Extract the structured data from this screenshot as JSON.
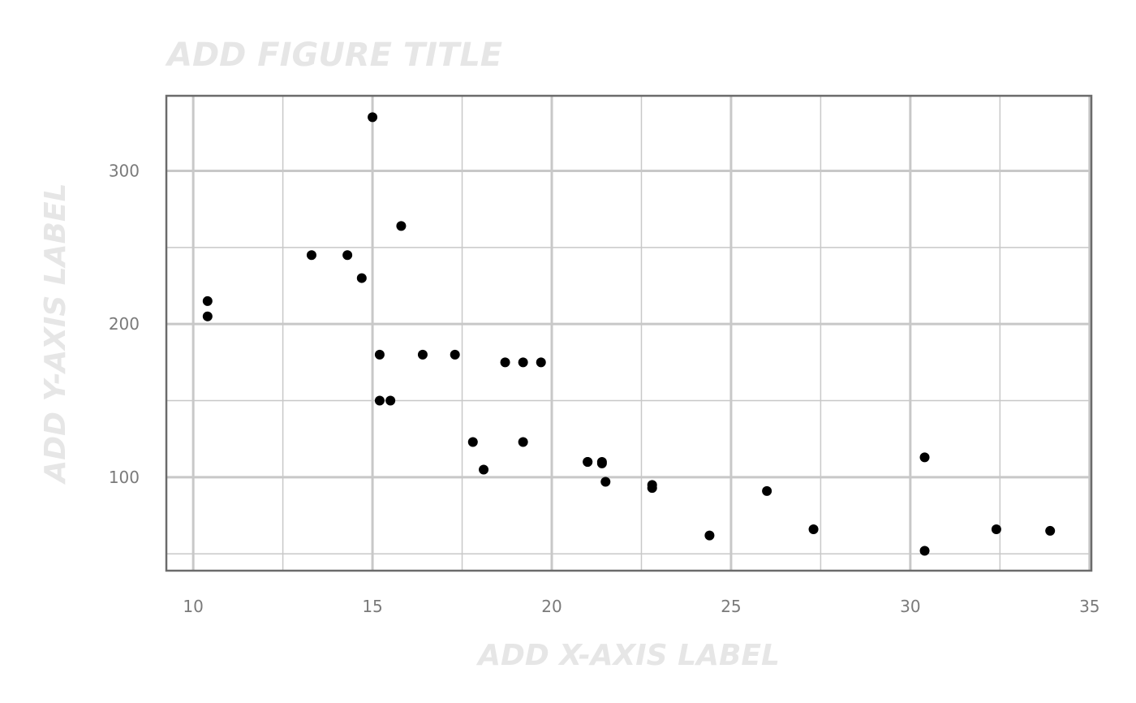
{
  "chart_data": {
    "type": "scatter",
    "title": "ADD FIGURE TITLE",
    "xlabel": "ADD X-AXIS LABEL",
    "ylabel": "ADD Y-AXIS LABEL",
    "xlim": [
      9.25,
      35.05
    ],
    "ylim": [
      39,
      349
    ],
    "x_ticks": [
      10,
      15,
      20,
      25,
      30,
      35
    ],
    "y_ticks": [
      100,
      200,
      300
    ],
    "x_tick_labels": [
      "10",
      "15",
      "20",
      "25",
      "30",
      "35"
    ],
    "y_tick_labels": [
      "100",
      "200",
      "300"
    ],
    "grid": true,
    "legend": "none",
    "point_color": "#000000",
    "points": [
      {
        "x": 21.0,
        "y": 110
      },
      {
        "x": 21.0,
        "y": 110
      },
      {
        "x": 22.8,
        "y": 93
      },
      {
        "x": 21.4,
        "y": 110
      },
      {
        "x": 18.7,
        "y": 175
      },
      {
        "x": 18.1,
        "y": 105
      },
      {
        "x": 14.3,
        "y": 245
      },
      {
        "x": 24.4,
        "y": 62
      },
      {
        "x": 22.8,
        "y": 95
      },
      {
        "x": 19.2,
        "y": 123
      },
      {
        "x": 17.8,
        "y": 123
      },
      {
        "x": 16.4,
        "y": 180
      },
      {
        "x": 17.3,
        "y": 180
      },
      {
        "x": 15.2,
        "y": 180
      },
      {
        "x": 10.4,
        "y": 205
      },
      {
        "x": 10.4,
        "y": 215
      },
      {
        "x": 14.7,
        "y": 230
      },
      {
        "x": 32.4,
        "y": 66
      },
      {
        "x": 30.4,
        "y": 52
      },
      {
        "x": 33.9,
        "y": 65
      },
      {
        "x": 21.5,
        "y": 97
      },
      {
        "x": 15.5,
        "y": 150
      },
      {
        "x": 15.2,
        "y": 150
      },
      {
        "x": 13.3,
        "y": 245
      },
      {
        "x": 19.2,
        "y": 175
      },
      {
        "x": 27.3,
        "y": 66
      },
      {
        "x": 26.0,
        "y": 91
      },
      {
        "x": 30.4,
        "y": 113
      },
      {
        "x": 15.8,
        "y": 264
      },
      {
        "x": 19.7,
        "y": 175
      },
      {
        "x": 15.0,
        "y": 335
      },
      {
        "x": 21.4,
        "y": 109
      }
    ]
  }
}
